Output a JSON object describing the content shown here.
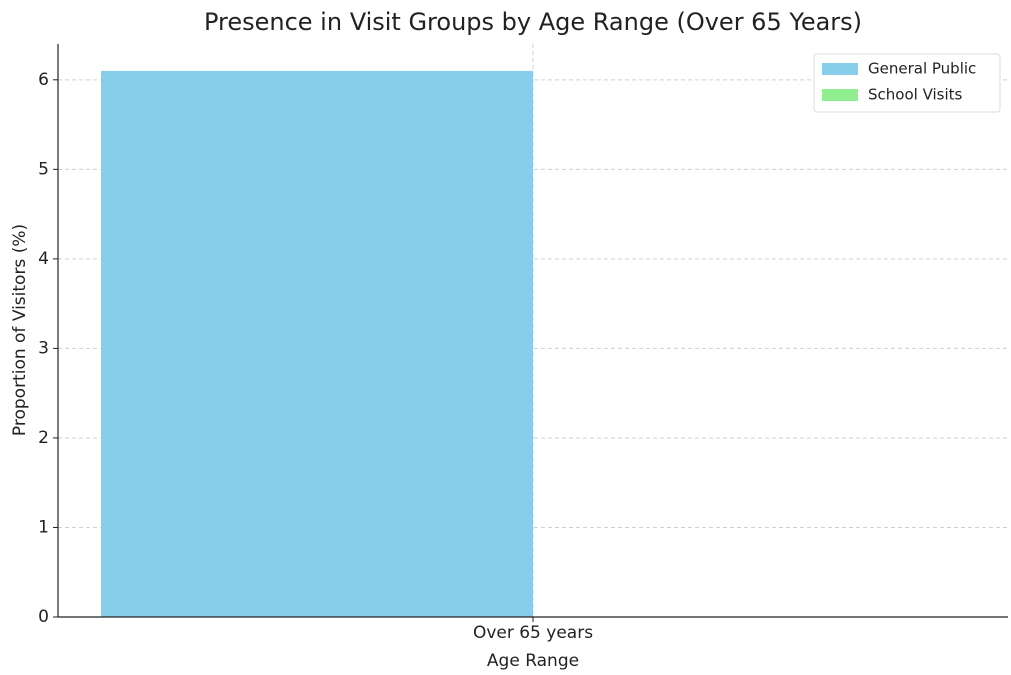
{
  "chart_data": {
    "type": "bar",
    "title": "Presence in Visit Groups by Age Range (Over 65 Years)",
    "x_label": "Age Range",
    "y_label": "Proportion of Visitors (%)",
    "categories": [
      "Over 65 years"
    ],
    "series": [
      {
        "name": "General Public",
        "color": "#87ceeb",
        "values": [
          6.1
        ]
      },
      {
        "name": "School Visits",
        "color": "#90ee90",
        "values": [
          0
        ]
      }
    ],
    "ylim": [
      0,
      6.4
    ],
    "yticks": [
      0,
      1,
      2,
      3,
      4,
      5,
      6
    ],
    "grid": true,
    "legend": "upper right"
  }
}
